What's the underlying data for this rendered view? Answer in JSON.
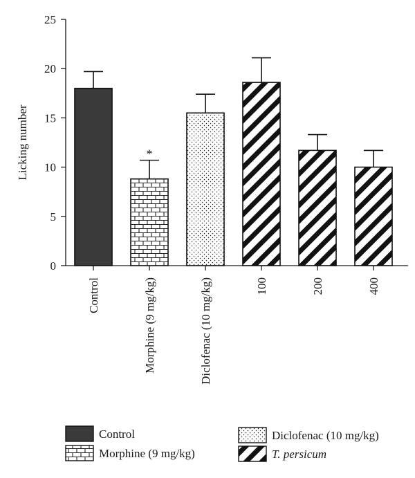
{
  "chart_data": {
    "type": "bar",
    "ylabel": "Licking number",
    "xlabel": "",
    "ylim": [
      0,
      25
    ],
    "yticks": [
      0,
      5,
      10,
      15,
      20,
      25
    ],
    "grid": false,
    "legend_position": "bottom",
    "categories": [
      "Control",
      "Morphine (9 mg/kg)",
      "Diclofenac (10 mg/kg)",
      "100",
      "200",
      "400"
    ],
    "values": [
      18.0,
      8.8,
      15.5,
      18.6,
      11.7,
      10.0
    ],
    "errors": [
      1.7,
      1.9,
      1.9,
      2.5,
      1.6,
      1.7
    ],
    "patterns": [
      "solid",
      "brick",
      "dots",
      "stripes",
      "stripes",
      "stripes"
    ],
    "significance": [
      "",
      "*",
      "",
      "",
      "",
      ""
    ],
    "legend": [
      {
        "label": "Control",
        "pattern": "solid",
        "italic": false
      },
      {
        "label": "Diclofenac (10 mg/kg)",
        "pattern": "dots",
        "italic": false
      },
      {
        "label": "Morphine (9 mg/kg)",
        "pattern": "brick",
        "italic": false
      },
      {
        "label": "T. persicum",
        "pattern": "stripes",
        "italic": true
      }
    ],
    "colors": {
      "solid": "#3a3a3a",
      "ink": "#1a1a1a",
      "background": "#ffffff"
    }
  }
}
